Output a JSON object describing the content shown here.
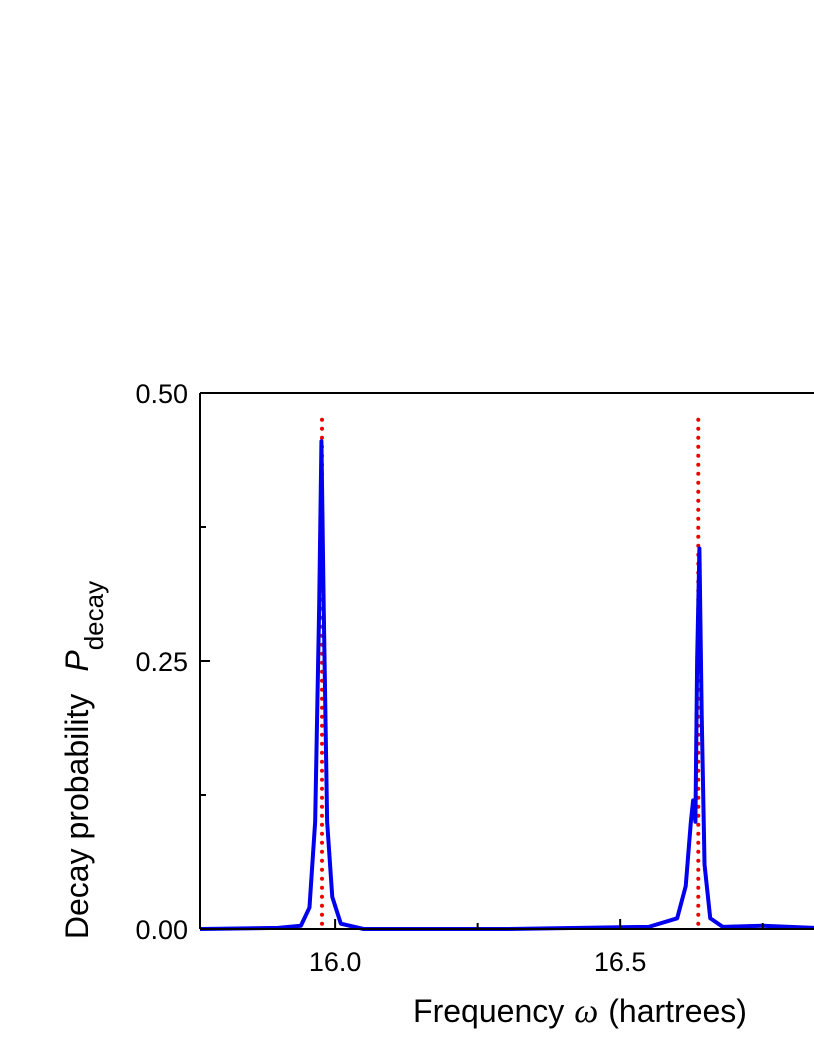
{
  "chart_data": {
    "type": "line",
    "x_label": {
      "text": "Frequency",
      "symbol": "ω",
      "unit": "(hartrees)"
    },
    "y_label": {
      "text": "Decay probability",
      "symbol": "P",
      "subscript": "decay"
    },
    "x": [
      15.763,
      15.9,
      15.94,
      15.955,
      15.965,
      15.972,
      15.976,
      15.98,
      15.986,
      15.995,
      16.01,
      16.05,
      16.3,
      16.55,
      16.6,
      16.615,
      16.624,
      16.628,
      16.632,
      16.635,
      16.639,
      16.643,
      16.648,
      16.658,
      16.68,
      16.75,
      16.84
    ],
    "series": [
      {
        "color": "#0000ee",
        "values": [
          0,
          0.001,
          0.003,
          0.02,
          0.1,
          0.3,
          0.455,
          0.3,
          0.1,
          0.03,
          0.005,
          0,
          0,
          0.002,
          0.01,
          0.04,
          0.1,
          0.12,
          0.1,
          0.25,
          0.355,
          0.2,
          0.06,
          0.01,
          0.002,
          0.003,
          0.001
        ]
      }
    ],
    "vlines": {
      "x": [
        15.977,
        16.637
      ],
      "top": 0.475,
      "color": "#ee0000"
    },
    "xlim": [
      15.763,
      16.84
    ],
    "ylim": [
      0,
      0.5
    ],
    "xticks": [
      {
        "value": 16.0,
        "label": "16.0"
      },
      {
        "value": 16.5,
        "label": "16.5"
      }
    ],
    "xminor": [
      16.25,
      16.75
    ],
    "yticks": [
      {
        "value": 0,
        "label": "0.00"
      },
      {
        "value": 0.25,
        "label": "0.25"
      },
      {
        "value": 0.5,
        "label": "0.50"
      }
    ],
    "yminor": [
      0.125,
      0.375
    ]
  }
}
